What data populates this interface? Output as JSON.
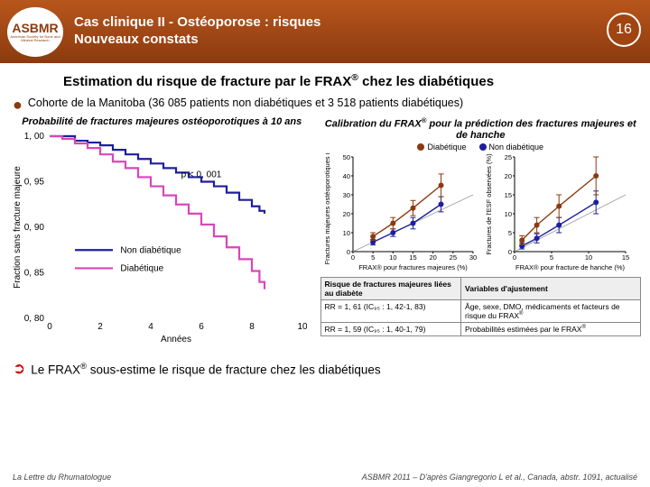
{
  "header": {
    "logo_main": "ASBMR",
    "logo_sub": "American Society for Bone and Mineral Research",
    "title_line1": "Cas clinique II - Ostéoporose : risques",
    "title_line2": "Nouveaux constats",
    "page_number": "16"
  },
  "section_title_pre": "Estimation du risque de fracture par le FRAX",
  "section_title_post": " chez les diabétiques",
  "bullet_text": "Cohorte de la Manitoba (36 085 patients non diabétiques et 3 518 patients diabétiques)",
  "left_chart": {
    "title": "Probabilité de fractures majeures ostéoporotiques à 10 ans",
    "ylabel": "Fraction sans fracture majeure",
    "xlabel": "Années",
    "p_value": "p < 0, 001",
    "legend_nondiab": "Non diabétique",
    "legend_diab": "Diabétique",
    "color_nondiab": "#1e1e9e",
    "color_diab": "#d946b8",
    "yticks": [
      "1, 00",
      "0, 95",
      "0, 90",
      "0, 85",
      "0, 80"
    ],
    "xticks": [
      "0",
      "2",
      "4",
      "6",
      "8",
      "10"
    ],
    "series_nondiab": [
      [
        0,
        1.0
      ],
      [
        0.5,
        1.0
      ],
      [
        1,
        0.995
      ],
      [
        1.5,
        0.993
      ],
      [
        2,
        0.99
      ],
      [
        2.5,
        0.985
      ],
      [
        3,
        0.98
      ],
      [
        3.5,
        0.975
      ],
      [
        4,
        0.97
      ],
      [
        4.5,
        0.965
      ],
      [
        5,
        0.96
      ],
      [
        5.5,
        0.955
      ],
      [
        6,
        0.95
      ],
      [
        6.5,
        0.945
      ],
      [
        7,
        0.938
      ],
      [
        7.5,
        0.93
      ],
      [
        8,
        0.923
      ],
      [
        8.3,
        0.918
      ],
      [
        8.5,
        0.915
      ]
    ],
    "series_diab": [
      [
        0,
        1.0
      ],
      [
        0.5,
        0.997
      ],
      [
        1,
        0.992
      ],
      [
        1.5,
        0.987
      ],
      [
        2,
        0.98
      ],
      [
        2.5,
        0.972
      ],
      [
        3,
        0.965
      ],
      [
        3.5,
        0.955
      ],
      [
        4,
        0.945
      ],
      [
        4.5,
        0.935
      ],
      [
        5,
        0.925
      ],
      [
        5.5,
        0.915
      ],
      [
        6,
        0.903
      ],
      [
        6.5,
        0.89
      ],
      [
        7,
        0.878
      ],
      [
        7.5,
        0.865
      ],
      [
        8,
        0.852
      ],
      [
        8.3,
        0.84
      ],
      [
        8.5,
        0.832
      ]
    ]
  },
  "right_charts": {
    "title_pre": "Calibration du FRAX",
    "title_post": " pour la prédiction des fractures majeures et de hanche",
    "legend_diab": "Diabétique",
    "legend_nondiab": "Non diabétique",
    "color_diab": "#8b3a0f",
    "color_nondiab": "#1e1e9e",
    "chart1": {
      "ylabel": "Fractures majeures ostéoporotiques (%)",
      "xlabel_pre": "FRAX",
      "xlabel_post": " pour fractures majeures (%)",
      "yticks": [
        0,
        10,
        20,
        30,
        40,
        50
      ],
      "xticks": [
        0,
        5,
        10,
        15,
        20,
        25,
        30
      ],
      "diab": [
        [
          5,
          8,
          2
        ],
        [
          10,
          15,
          3
        ],
        [
          15,
          23,
          4
        ],
        [
          22,
          35,
          6
        ]
      ],
      "nondiab": [
        [
          5,
          5,
          1.5
        ],
        [
          10,
          10,
          2
        ],
        [
          15,
          15,
          3
        ],
        [
          22,
          25,
          4
        ]
      ]
    },
    "chart2": {
      "ylabel": "Fractures de l'ESF observées (%)",
      "xlabel_pre": "FRAX",
      "xlabel_post": " pour fracture de hanche (%)",
      "yticks": [
        0,
        5,
        10,
        15,
        20,
        25
      ],
      "xticks": [
        0,
        5,
        10,
        15
      ],
      "diab": [
        [
          1,
          3,
          1.2
        ],
        [
          3,
          7,
          2
        ],
        [
          6,
          12,
          3
        ],
        [
          11,
          20,
          5
        ]
      ],
      "nondiab": [
        [
          1,
          1.5,
          0.8
        ],
        [
          3,
          3.5,
          1.2
        ],
        [
          6,
          7,
          2
        ],
        [
          11,
          13,
          3
        ]
      ]
    }
  },
  "table": {
    "header1": "Risque de fractures majeures liées au diabète",
    "header2": "Variables d'ajustement",
    "row1_c1": "RR = 1, 61 (IC₉₅ : 1, 42-1, 83)",
    "row1_c2_pre": "Âge, sexe, DMO, médicaments et facteurs de risque du FRAX",
    "row2_c1": "RR = 1, 59 (IC₉₅ : 1, 40-1, 79)",
    "row2_c2_pre": "Probabilités estimées par le FRAX"
  },
  "conclusion_pre": "Le FRAX",
  "conclusion_post": " sous-estime le risque de fracture chez les diabétiques",
  "footer_left": "La Lettre du Rhumatologue",
  "footer_right": "ASBMR 2011 – D'après Giangregorio L et al., Canada, abstr. 1091, actualisé"
}
